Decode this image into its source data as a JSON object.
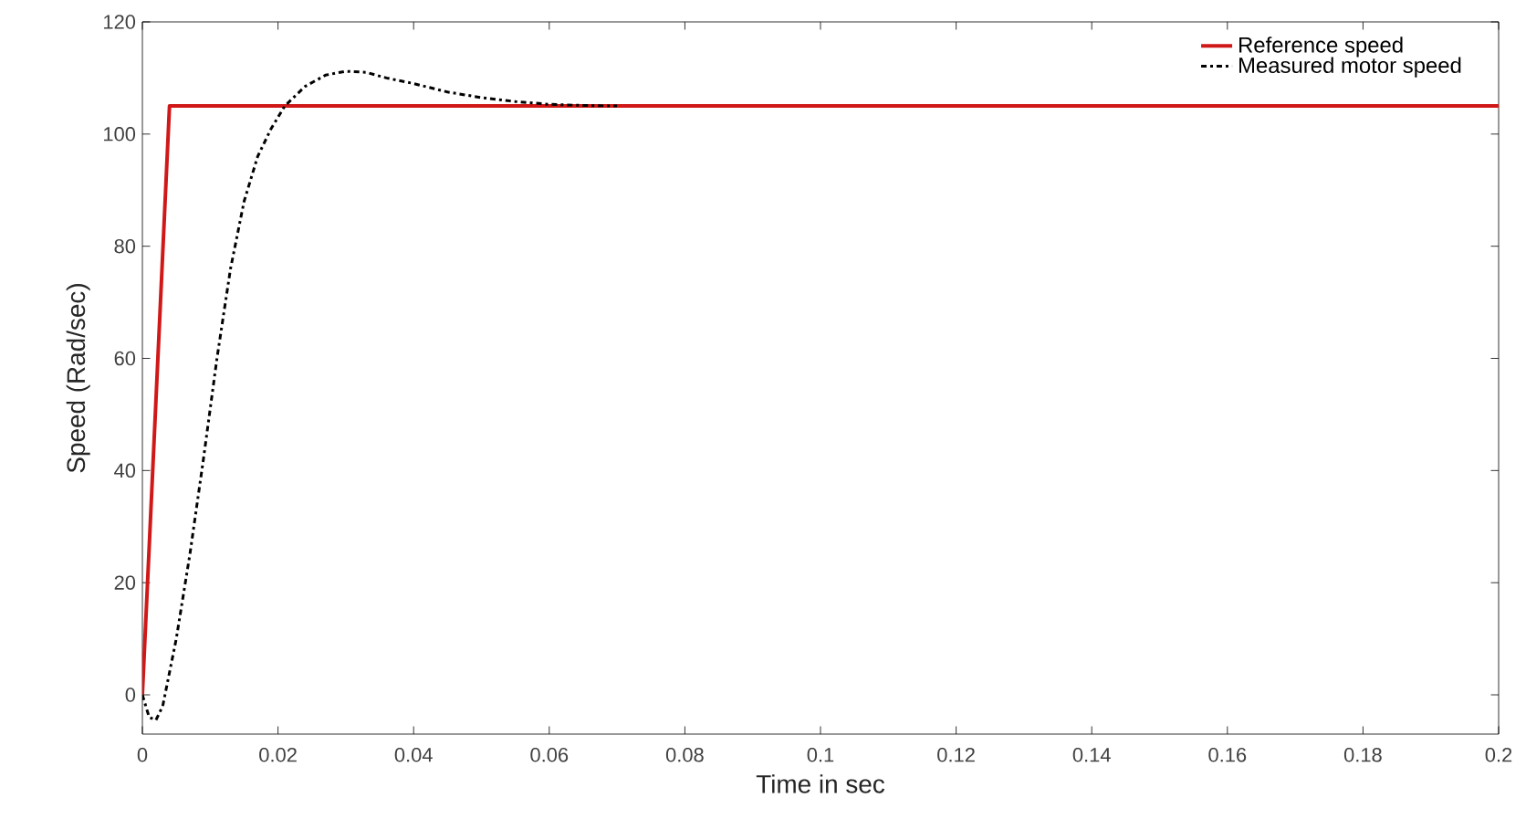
{
  "chart_data": {
    "type": "line",
    "xlabel": "Time in sec",
    "ylabel": "Speed (Rad/sec)",
    "xlim": [
      0,
      0.2
    ],
    "ylim": [
      -7,
      120
    ],
    "xticks": [
      0,
      0.02,
      0.04,
      0.06,
      0.08,
      0.1,
      0.12,
      0.14,
      0.16,
      0.18,
      0.2
    ],
    "yticks": [
      0,
      20,
      40,
      60,
      80,
      100,
      120
    ],
    "grid": false,
    "legend": "top right",
    "series": [
      {
        "name": "Reference speed",
        "color": "#d01818",
        "line_style": "solid",
        "x": [
          0,
          0.004,
          0.2
        ],
        "values": [
          0,
          105,
          105
        ]
      },
      {
        "name": "Measured motor speed",
        "color": "#000000",
        "line_style": "dashdot",
        "x": [
          0,
          0.001,
          0.002,
          0.003,
          0.005,
          0.007,
          0.009,
          0.011,
          0.013,
          0.015,
          0.017,
          0.019,
          0.021,
          0.024,
          0.027,
          0.03,
          0.033,
          0.036,
          0.04,
          0.045,
          0.05,
          0.055,
          0.06,
          0.065,
          0.07
        ],
        "values": [
          0,
          -4,
          -4.5,
          -2,
          10,
          25,
          42,
          60,
          76,
          88,
          96,
          101,
          105,
          108.5,
          110.5,
          111.2,
          111,
          110,
          109,
          107.5,
          106.5,
          105.8,
          105.3,
          105.1,
          105
        ]
      }
    ]
  }
}
